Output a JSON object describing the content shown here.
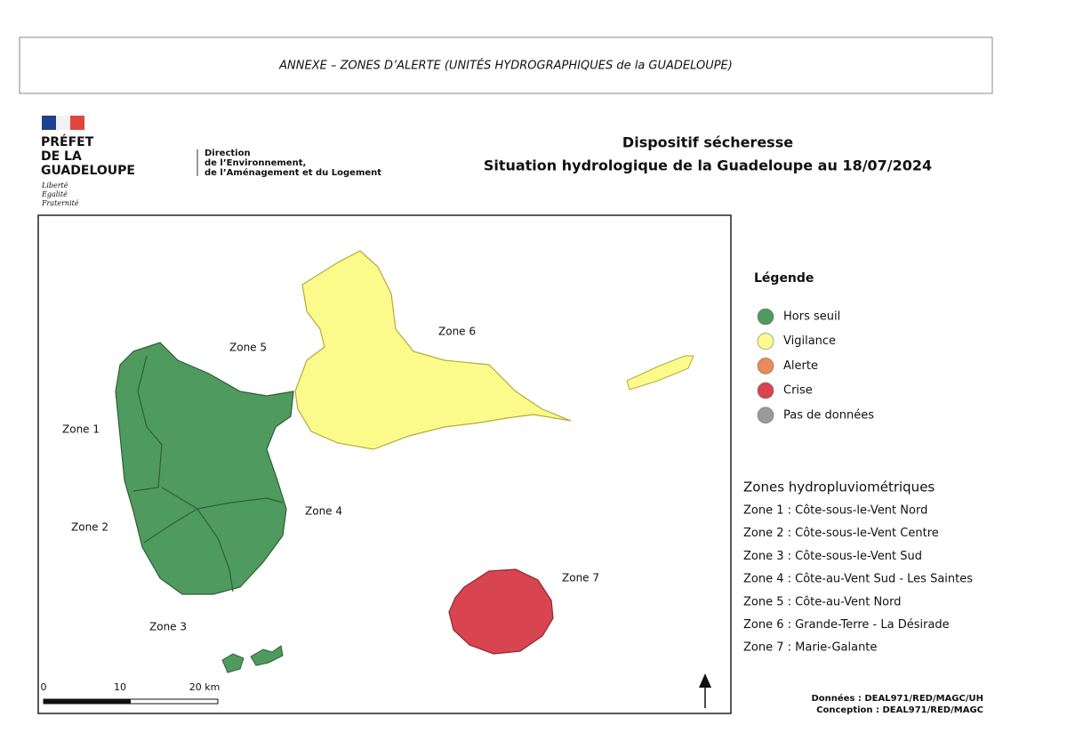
{
  "header": {
    "title": "ANNEXE – ZONES D’ALERTE (UNITÉS HYDROGRAPHIQUES de la GUADELOUPE)"
  },
  "logo": {
    "lines": [
      "PRÉFET",
      "DE LA",
      "GUADELOUPE"
    ],
    "motto": [
      "Liberté",
      "Égalité",
      "Fraternité"
    ]
  },
  "direction": {
    "lines": [
      "Direction",
      "de l’Environnement,",
      "de l’Aménagement et du Logement"
    ]
  },
  "title": {
    "lines": [
      "Dispositif sécheresse",
      "Situation hydrologique de la Guadeloupe au 18/07/2024"
    ]
  },
  "map": {
    "zone_labels": [
      "Zone 1",
      "Zone 2",
      "Zone 3",
      "Zone 4",
      "Zone 5",
      "Zone 6",
      "Zone 7"
    ],
    "scale_labels": [
      "0",
      "10",
      "20 km"
    ]
  },
  "legend": {
    "title": "Légende",
    "items": [
      {
        "label": "Hors seuil",
        "color": "#4f9a5e"
      },
      {
        "label": "Vigilance",
        "color": "#fbfb8c"
      },
      {
        "label": "Alerte",
        "color": "#e98a58"
      },
      {
        "label": "Crise",
        "color": "#d8444f"
      },
      {
        "label": "Pas de données",
        "color": "#9a9a9a"
      }
    ]
  },
  "zones": {
    "title": "Zones hydropluviométriques",
    "items": [
      "Zone 1 : Côte-sous-le-Vent Nord",
      "Zone 2 : Côte-sous-le-Vent Centre",
      "Zone 3 : Côte-sous-le-Vent Sud",
      "Zone 4 : Côte-au-Vent Sud - Les Saintes",
      "Zone 5 : Côte-au-Vent Nord",
      "Zone 6 : Grande-Terre - La Désirade",
      "Zone 7 : Marie-Galante"
    ]
  },
  "credits": [
    "Données : DEAL971/RED/MAGC/UH",
    "Conception : DEAL971/RED/MAGC"
  ]
}
